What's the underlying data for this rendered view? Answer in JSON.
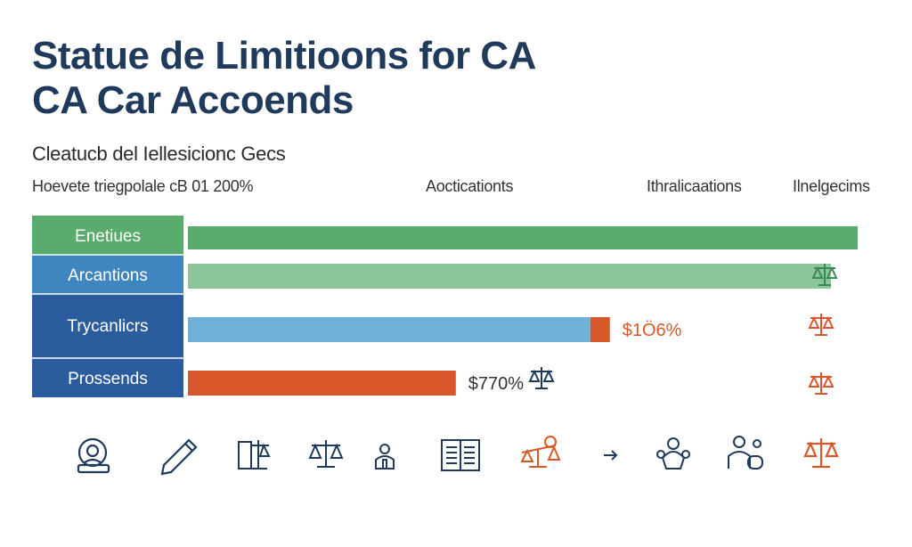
{
  "header": {
    "title_line1": "Statue de Limitioons for CA",
    "title_line2": "CA Car Accoends",
    "subtitle": "Cleatucb del Iellesicionc Gecs"
  },
  "columns": {
    "left": "Hoevete triegpolale cB 01 200%",
    "middle": "Aocticationts",
    "right1": "Ithralicaations",
    "right2": "Ilnelgecims"
  },
  "colors": {
    "title": "#1f3a5a",
    "green": "#5aac6e",
    "light_green": "#8cc59a",
    "mid_blue": "#3f86c0",
    "dark_blue": "#2b5c9e",
    "sky_blue": "#6fb0d8",
    "orange": "#d9582b",
    "icon_dark": "#1f3a5a",
    "icon_orange": "#d9582b"
  },
  "chart_data": {
    "type": "bar",
    "orientation": "horizontal",
    "categories": [
      "Enetiues",
      "Arcantions",
      "Trycanlicrs",
      "Prossends"
    ],
    "values": [
      100,
      96,
      63,
      40
    ],
    "xlim": [
      0,
      100
    ],
    "value_labels": [
      "",
      "",
      "$1Ö6%",
      "$770%"
    ],
    "title": "Statue de Limitioons for CA CA Car Accoends"
  },
  "icons": [
    "magnifier-icon",
    "pen-icon",
    "document-scale-icon",
    "scale-icon",
    "person-icon",
    "book-icon",
    "team-scale-icon",
    "arrow-right-icon",
    "people-icon",
    "group-icon",
    "justice-scale-icon"
  ]
}
